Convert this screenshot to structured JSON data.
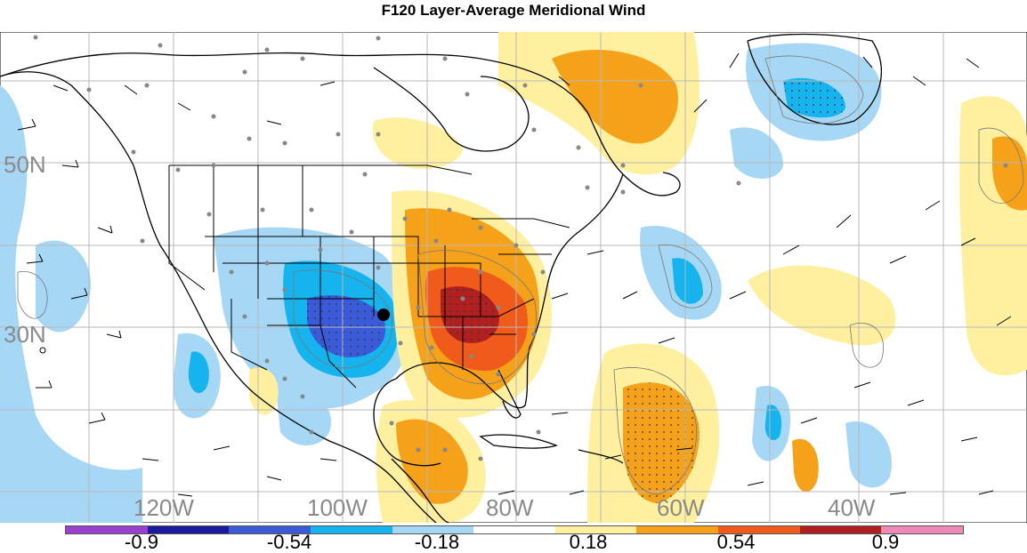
{
  "title": "F120 Layer-Average Meridional Wind",
  "map": {
    "lon_labels": [
      "120W",
      "100W",
      "80W",
      "60W",
      "40W"
    ],
    "lat_labels": [
      "50N",
      "30N"
    ]
  },
  "colorbar": {
    "colors": [
      "#9a3fd0",
      "#1a1a9a",
      "#3a5ad8",
      "#15b4ee",
      "#a6d8f5",
      "#ffffff",
      "#fff0a0",
      "#f5a21a",
      "#f05a1a",
      "#b02020",
      "#f08ab8"
    ],
    "labels": [
      "-0.9",
      "-0.54",
      "-0.18",
      "0.18",
      "0.54",
      "0.9"
    ]
  }
}
